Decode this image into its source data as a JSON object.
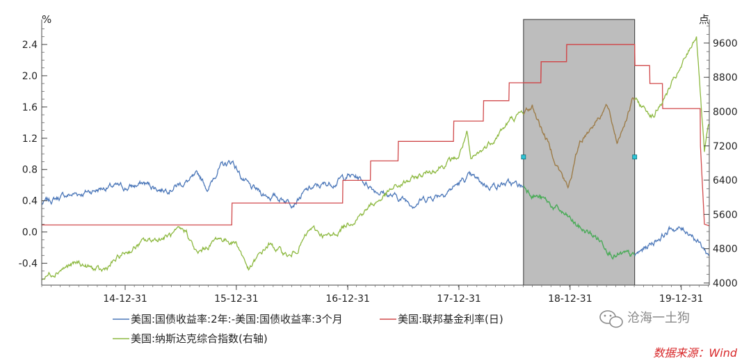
{
  "chart_data": {
    "type": "line",
    "left_unit": "%",
    "right_unit": "点",
    "y_left": {
      "ticks": [
        "2.4",
        "2.0",
        "1.6",
        "1.2",
        "0.8",
        "0.4",
        "0.0",
        "-0.4"
      ],
      "range": [
        -0.68,
        2.72
      ]
    },
    "y_right": {
      "ticks": [
        "9600",
        "8800",
        "8000",
        "7200",
        "6400",
        "5600",
        "4800",
        "4000"
      ],
      "range": [
        3950,
        10150
      ]
    },
    "x_ticks": [
      "14-12-31",
      "15-12-31",
      "16-12-31",
      "17-12-31",
      "18-12-31",
      "19-12-31"
    ],
    "x_tick_dates": [
      "2014-12-31",
      "2015-12-31",
      "2016-12-31",
      "2017-12-31",
      "2018-12-31",
      "2019-12-31"
    ],
    "x_range": [
      "2014-04-01",
      "2020-04-01"
    ],
    "shaded_region": {
      "start": "2018-07-31",
      "end": "2019-07-31",
      "color": "#bdbdbd"
    },
    "series": [
      {
        "name": "美国:国债收益率:2年:-美国:国债收益率:3个月",
        "axis": "left",
        "color": "#4a76b8",
        "points": [
          [
            "2014-04-01",
            0.36
          ],
          [
            "2014-06-01",
            0.45
          ],
          [
            "2014-09-01",
            0.52
          ],
          [
            "2014-11-01",
            0.58
          ],
          [
            "2015-01-01",
            0.56
          ],
          [
            "2015-03-01",
            0.62
          ],
          [
            "2015-05-01",
            0.55
          ],
          [
            "2015-07-01",
            0.62
          ],
          [
            "2015-09-01",
            0.7
          ],
          [
            "2015-10-01",
            0.55
          ],
          [
            "2015-11-01",
            0.82
          ],
          [
            "2015-12-20",
            0.9
          ],
          [
            "2016-01-15",
            0.72
          ],
          [
            "2016-02-15",
            0.55
          ],
          [
            "2016-04-01",
            0.48
          ],
          [
            "2016-07-01",
            0.4
          ],
          [
            "2016-09-01",
            0.55
          ],
          [
            "2016-11-01",
            0.62
          ],
          [
            "2016-12-31",
            0.72
          ],
          [
            "2017-02-01",
            0.7
          ],
          [
            "2017-04-01",
            0.55
          ],
          [
            "2017-06-01",
            0.45
          ],
          [
            "2017-08-01",
            0.38
          ],
          [
            "2017-10-01",
            0.45
          ],
          [
            "2017-12-01",
            0.55
          ],
          [
            "2018-02-01",
            0.7
          ],
          [
            "2018-04-01",
            0.6
          ],
          [
            "2018-06-01",
            0.62
          ],
          [
            "2018-08-01",
            0.58
          ],
          [
            "2018-10-01",
            0.42
          ],
          [
            "2018-12-01",
            0.25
          ],
          [
            "2019-02-01",
            0.05
          ],
          [
            "2019-04-01",
            -0.08
          ],
          [
            "2019-06-01",
            -0.3
          ],
          [
            "2019-08-01",
            -0.32
          ],
          [
            "2019-10-01",
            -0.12
          ],
          [
            "2019-12-01",
            0.05
          ],
          [
            "2020-02-01",
            0.0
          ],
          [
            "2020-03-31",
            -0.3
          ]
        ]
      },
      {
        "name": "美国:联邦基金利率(日)",
        "axis": "left",
        "color": "#d0484a",
        "points": [
          [
            "2014-04-01",
            0.09
          ],
          [
            "2015-12-16",
            0.09
          ],
          [
            "2015-12-17",
            0.37
          ],
          [
            "2016-12-14",
            0.37
          ],
          [
            "2016-12-15",
            0.66
          ],
          [
            "2017-03-15",
            0.66
          ],
          [
            "2017-03-16",
            0.91
          ],
          [
            "2017-06-14",
            0.91
          ],
          [
            "2017-06-15",
            1.16
          ],
          [
            "2017-12-13",
            1.16
          ],
          [
            "2017-12-14",
            1.42
          ],
          [
            "2018-03-21",
            1.42
          ],
          [
            "2018-03-22",
            1.68
          ],
          [
            "2018-06-13",
            1.68
          ],
          [
            "2018-06-14",
            1.91
          ],
          [
            "2018-09-26",
            1.91
          ],
          [
            "2018-09-27",
            2.18
          ],
          [
            "2018-12-19",
            2.18
          ],
          [
            "2018-12-20",
            2.4
          ],
          [
            "2019-07-31",
            2.4
          ],
          [
            "2019-08-01",
            2.13
          ],
          [
            "2019-09-18",
            2.13
          ],
          [
            "2019-09-19",
            1.9
          ],
          [
            "2019-10-30",
            1.9
          ],
          [
            "2019-10-31",
            1.58
          ],
          [
            "2020-03-02",
            1.58
          ],
          [
            "2020-03-03",
            1.1
          ],
          [
            "2020-03-16",
            0.1
          ],
          [
            "2020-03-31",
            0.08
          ]
        ]
      },
      {
        "name": "美国:纳斯达克综合指数(右轴)",
        "axis": "right",
        "color": "#8cb83f",
        "points": [
          [
            "2014-04-01",
            4100
          ],
          [
            "2014-06-01",
            4350
          ],
          [
            "2014-08-01",
            4450
          ],
          [
            "2014-10-15",
            4250
          ],
          [
            "2014-12-31",
            4700
          ],
          [
            "2015-03-01",
            4950
          ],
          [
            "2015-07-20",
            5200
          ],
          [
            "2015-08-25",
            4650
          ],
          [
            "2015-11-01",
            5050
          ],
          [
            "2016-01-01",
            4950
          ],
          [
            "2016-02-11",
            4300
          ],
          [
            "2016-04-15",
            4900
          ],
          [
            "2016-06-27",
            4600
          ],
          [
            "2016-09-01",
            5250
          ],
          [
            "2016-11-04",
            5050
          ],
          [
            "2016-12-31",
            5400
          ],
          [
            "2017-06-01",
            6200
          ],
          [
            "2017-12-31",
            6950
          ],
          [
            "2018-01-26",
            7500
          ],
          [
            "2018-02-08",
            6800
          ],
          [
            "2018-06-20",
            7800
          ],
          [
            "2018-08-29",
            8100
          ],
          [
            "2018-10-15",
            7350
          ],
          [
            "2018-12-24",
            6200
          ],
          [
            "2019-02-01",
            7300
          ],
          [
            "2019-04-30",
            8150
          ],
          [
            "2019-06-03",
            7300
          ],
          [
            "2019-07-26",
            8300
          ],
          [
            "2019-10-01",
            7900
          ],
          [
            "2019-12-31",
            9000
          ],
          [
            "2020-02-19",
            9800
          ],
          [
            "2020-03-16",
            7000
          ],
          [
            "2020-03-31",
            7700
          ]
        ]
      }
    ],
    "legend_position": "bottom"
  },
  "watermark": "沧海一土狗",
  "source": "数据来源：Wind"
}
